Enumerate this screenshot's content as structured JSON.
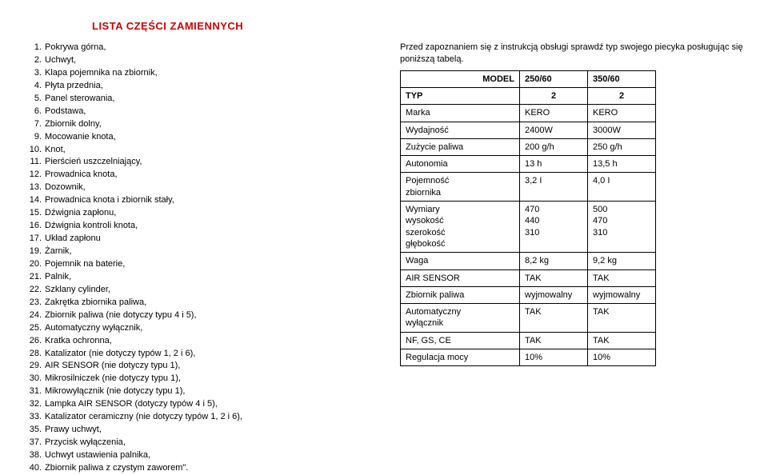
{
  "title": "LISTA CZĘŚCI ZAMIENNYCH",
  "parts": [
    {
      "n": "1.",
      "t": "Pokrywa górna,"
    },
    {
      "n": "2.",
      "t": "Uchwyt,"
    },
    {
      "n": "3.",
      "t": "Klapa pojemnika na zbiornik,"
    },
    {
      "n": "4.",
      "t": "Płyta przednia,"
    },
    {
      "n": "5.",
      "t": "Panel sterowania,"
    },
    {
      "n": "6.",
      "t": "Podstawa,"
    },
    {
      "n": "7.",
      "t": "Zbiornik dolny,"
    },
    {
      "n": "9.",
      "t": "Mocowanie knota,"
    },
    {
      "n": "10.",
      "t": "Knot,"
    },
    {
      "n": "11.",
      "t": "Pierścień uszczelniający,"
    },
    {
      "n": "12.",
      "t": "Prowadnica knota,"
    },
    {
      "n": "13.",
      "t": "Dozownik,"
    },
    {
      "n": "14.",
      "t": "Prowadnica knota i zbiornik stały,"
    },
    {
      "n": "15.",
      "t": "Dźwignia zapłonu,"
    },
    {
      "n": "16.",
      "t": "Dźwignia kontroli knota,"
    },
    {
      "n": "17.",
      "t": "Układ zapłonu"
    },
    {
      "n": "19.",
      "t": "Żarnik,"
    },
    {
      "n": "20.",
      "t": "Pojemnik na baterie,"
    },
    {
      "n": "21.",
      "t": "Palnik,"
    },
    {
      "n": "22.",
      "t": "Szklany cylinder,"
    },
    {
      "n": "23.",
      "t": "Zakrętka zbiornika paliwa,"
    },
    {
      "n": "24.",
      "t": "Zbiornik paliwa (nie dotyczy typu 4 i 5),"
    },
    {
      "n": "25.",
      "t": "Automatyczny wyłącznik,"
    },
    {
      "n": "26.",
      "t": "Kratka ochronna,"
    },
    {
      "n": "28.",
      "t": "Katalizator (nie dotyczy typów 1, 2 i 6),"
    },
    {
      "n": "29.",
      "t": "AIR SENSOR (nie dotyczy typu 1),"
    },
    {
      "n": "30.",
      "t": "Mikrosilniczek (nie dotyczy typu 1),"
    },
    {
      "n": "31.",
      "t": "Mikrowyłącznik (nie dotyczy typu 1),"
    },
    {
      "n": "32.",
      "t": "Lampka AIR SENSOR (dotyczy typów 4 i 5),"
    },
    {
      "n": "33.",
      "t": "Katalizator ceramiczny (nie dotyczy typów 1, 2 i 6),"
    },
    {
      "n": "35.",
      "t": "Prawy uchwyt,"
    },
    {
      "n": "37.",
      "t": "Przycisk wyłączenia,"
    },
    {
      "n": "38.",
      "t": "Uchwyt ustawienia palnika,"
    },
    {
      "n": "40.",
      "t": "Zbiornik paliwa z czystym zaworem\"."
    }
  ],
  "intro": "Przed zapoznaniem się z instrukcją obsługi sprawdź typ swojego piecyka posługując się poniższą tabelą.",
  "table": {
    "modelLabel": "MODEL",
    "models": [
      "250/60",
      "350/60"
    ],
    "typLabel": "TYP",
    "typVals": [
      "2",
      "2"
    ],
    "rows": [
      {
        "label": "Marka",
        "v1": "KERO",
        "v2": "KERO"
      },
      {
        "label": "Wydajność",
        "v1": "2400W",
        "v2": "3000W"
      },
      {
        "label": "Zużycie paliwa",
        "v1": "200 g/h",
        "v2": "250 g/h"
      },
      {
        "label": "Autonomia",
        "v1": "13 h",
        "v2": "13,5 h"
      },
      {
        "label": "Pojemność\nzbiornika",
        "v1": "3,2 I",
        "v2": "4,0 I"
      },
      {
        "label": "Wymiary\nwysokość\nszerokość\ngłębokość",
        "v1": "470\n440\n310",
        "v2": "500\n470\n310"
      },
      {
        "label": "Waga",
        "v1": "8,2 kg",
        "v2": "9,2 kg"
      },
      {
        "label": "AIR SENSOR",
        "v1": "TAK",
        "v2": "TAK"
      },
      {
        "label": "Zbiornik paliwa",
        "v1": "wyjmowalny",
        "v2": "wyjmowalny"
      },
      {
        "label": "Automatyczny\nwyłącznik",
        "v1": "TAK",
        "v2": "TAK"
      },
      {
        "label": "NF, GS, CE",
        "v1": "TAK",
        "v2": "TAK"
      },
      {
        "label": "Regulacja mocy",
        "v1": "10%",
        "v2": "10%"
      }
    ]
  }
}
